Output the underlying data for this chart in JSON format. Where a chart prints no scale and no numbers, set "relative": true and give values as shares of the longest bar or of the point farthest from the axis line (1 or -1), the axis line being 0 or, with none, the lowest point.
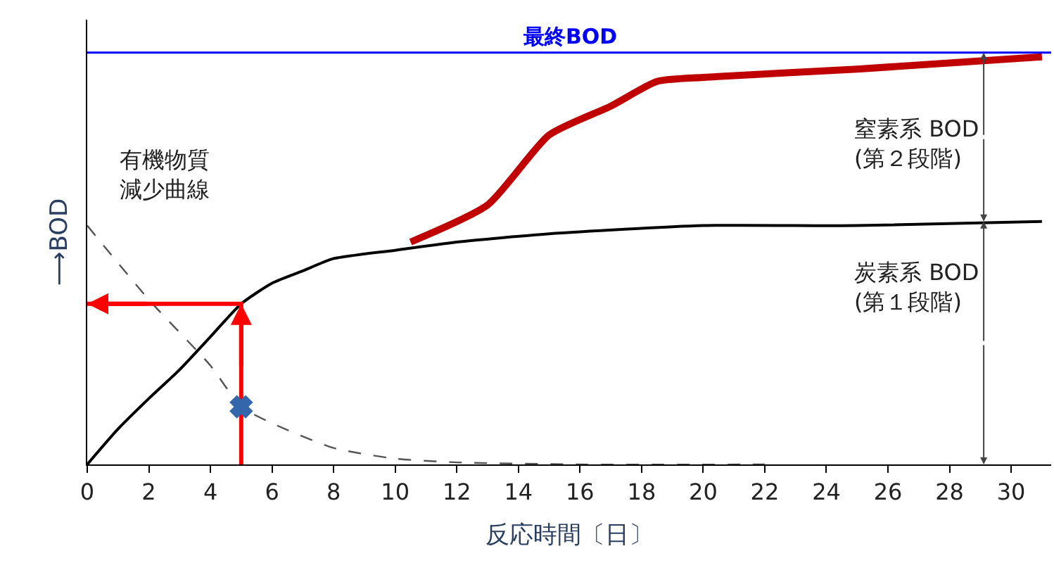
{
  "chart_data": {
    "type": "line",
    "relative": true,
    "xlabel": "反応時間〔日〕",
    "ylabel": "⟶BOD",
    "x": [
      0,
      1,
      2,
      3,
      4,
      5,
      6,
      7,
      8,
      10,
      12,
      15,
      20,
      25,
      31
    ],
    "xlim": [
      0,
      31.3
    ],
    "xticks": [
      0,
      2,
      4,
      6,
      8,
      10,
      12,
      14,
      16,
      18,
      20,
      22,
      24,
      26,
      28,
      30
    ],
    "series": [
      {
        "color": "#000000",
        "values": [
          0,
          0.086,
          0.16,
          0.23,
          0.31,
          0.39,
          0.44,
          0.47,
          0.5,
          0.52,
          0.54,
          0.56,
          0.58,
          0.58,
          0.59
        ]
      },
      {
        "color": "#c00000",
        "x": [
          10.5,
          13,
          15,
          17,
          18.5,
          20,
          25,
          31
        ],
        "values": [
          0.54,
          0.63,
          0.8,
          0.87,
          0.93,
          0.94,
          0.96,
          0.99
        ]
      },
      {
        "color": "#555555",
        "line_style": "dashed",
        "x": [
          0,
          2,
          4,
          5,
          6,
          8,
          10,
          12,
          16,
          22
        ],
        "values": [
          0.58,
          0.4,
          0.24,
          0.14,
          0.1,
          0.04,
          0.014,
          0.005,
          0,
          0
        ]
      },
      {
        "color": "#ff0000",
        "x": [
          5,
          5,
          0
        ],
        "values": [
          0,
          0.39,
          0.39
        ]
      },
      {
        "type": "scatter",
        "marker": "cross",
        "color": "#3366aa",
        "x": [
          5
        ],
        "values": [
          0.14
        ]
      },
      {
        "name": "最終BOD",
        "color": "#0000ff",
        "x": [
          0,
          31.3
        ],
        "values": [
          1,
          1
        ]
      }
    ],
    "annotations": [
      "有機物質減少曲線",
      "窒素系 BOD\n(第２段階)",
      "炭素系 BOD\n(第１段階)"
    ],
    "legend": false
  }
}
